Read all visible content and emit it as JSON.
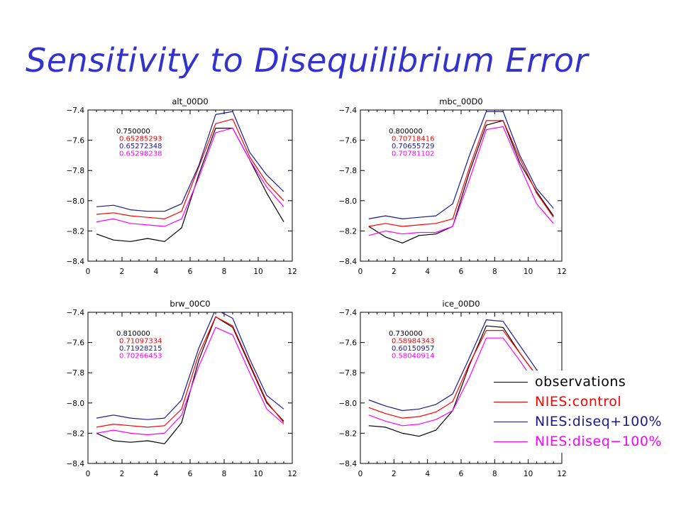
{
  "slide": {
    "title": "Sensitivity to Disequilibrium Error"
  },
  "colors": {
    "title": "#3333cc",
    "observations": "#000000",
    "control": "#ff0000",
    "plus": "#1a1a8c",
    "minus": "#ff00ff"
  },
  "legend": [
    {
      "label": "observations",
      "color": "#000000"
    },
    {
      "label": "NIES:control",
      "color": "#ff0000"
    },
    {
      "label": "NIES:diseq+100%",
      "color": "#1a1a8c"
    },
    {
      "label": "NIES:diseq−100%",
      "color": "#ff00ff"
    }
  ],
  "chart_data": [
    {
      "type": "line",
      "title": "alt_00D0",
      "xlim": [
        0,
        12
      ],
      "ylim": [
        -8.4,
        -7.4
      ],
      "xticks": [
        0,
        2,
        4,
        6,
        8,
        10,
        12
      ],
      "yticks": [
        -7.4,
        -7.6,
        -7.8,
        -8.0,
        -8.2,
        -8.4
      ],
      "x": [
        0.5,
        1.5,
        2.5,
        3.5,
        4.5,
        5.5,
        6.5,
        7.5,
        8.5,
        9.5,
        10.5,
        11.5
      ],
      "annotations": [
        "0.750000",
        "0.65285293",
        "0.65272348",
        "0.65298238"
      ],
      "series": [
        {
          "name": "observations",
          "values": [
            -8.22,
            -8.26,
            -8.27,
            -8.25,
            -8.27,
            -8.18,
            -7.83,
            -7.52,
            -7.52,
            -7.73,
            -7.95,
            -8.14
          ]
        },
        {
          "name": "NIES:control",
          "values": [
            -8.09,
            -8.08,
            -8.1,
            -8.11,
            -8.12,
            -8.07,
            -7.78,
            -7.49,
            -7.46,
            -7.71,
            -7.88,
            -8.0
          ]
        },
        {
          "name": "NIES:diseq+100%",
          "values": [
            -8.04,
            -8.03,
            -8.06,
            -8.07,
            -8.07,
            -8.02,
            -7.77,
            -7.43,
            -7.41,
            -7.68,
            -7.83,
            -7.94
          ]
        },
        {
          "name": "NIES:diseq−100%",
          "values": [
            -8.14,
            -8.12,
            -8.15,
            -8.16,
            -8.17,
            -8.12,
            -7.85,
            -7.55,
            -7.52,
            -7.73,
            -7.91,
            -8.04
          ]
        }
      ]
    },
    {
      "type": "line",
      "title": "mbc_00D0",
      "xlim": [
        0,
        12
      ],
      "ylim": [
        -8.4,
        -7.4
      ],
      "xticks": [
        0,
        2,
        4,
        6,
        8,
        10,
        12
      ],
      "yticks": [
        -7.4,
        -7.6,
        -7.8,
        -8.0,
        -8.2,
        -8.4
      ],
      "x": [
        0.5,
        1.5,
        2.5,
        3.5,
        4.5,
        5.5,
        6.5,
        7.5,
        8.5,
        9.5,
        10.5,
        11.5
      ],
      "annotations": [
        "0.800000",
        "0.70718416",
        "0.70655729",
        "0.70781102"
      ],
      "series": [
        {
          "name": "observations",
          "values": [
            -8.17,
            -8.24,
            -8.28,
            -8.23,
            -8.22,
            -8.17,
            -7.81,
            -7.5,
            -7.47,
            -7.75,
            -7.94,
            -8.1
          ]
        },
        {
          "name": "NIES:control",
          "values": [
            -8.17,
            -8.15,
            -8.17,
            -8.16,
            -8.15,
            -8.12,
            -7.78,
            -7.47,
            -7.47,
            -7.72,
            -7.95,
            -8.11
          ]
        },
        {
          "name": "NIES:diseq+100%",
          "values": [
            -8.12,
            -8.1,
            -8.12,
            -8.11,
            -8.1,
            -8.02,
            -7.7,
            -7.41,
            -7.41,
            -7.7,
            -7.92,
            -8.05
          ]
        },
        {
          "name": "NIES:diseq−100%",
          "values": [
            -8.23,
            -8.2,
            -8.22,
            -8.21,
            -8.21,
            -8.17,
            -7.86,
            -7.53,
            -7.51,
            -7.77,
            -8.02,
            -8.15
          ]
        }
      ]
    },
    {
      "type": "line",
      "title": "brw_00C0",
      "xlim": [
        0,
        12
      ],
      "ylim": [
        -8.4,
        -7.4
      ],
      "xticks": [
        0,
        2,
        4,
        6,
        8,
        10,
        12
      ],
      "yticks": [
        -7.4,
        -7.6,
        -7.8,
        -8.0,
        -8.2,
        -8.4
      ],
      "x": [
        0.5,
        1.5,
        2.5,
        3.5,
        4.5,
        5.5,
        6.5,
        7.5,
        8.5,
        9.5,
        10.5,
        11.5
      ],
      "annotations": [
        "0.810000",
        "0.71097334",
        "0.71928215",
        "0.70266453"
      ],
      "series": [
        {
          "name": "observations",
          "values": [
            -8.2,
            -8.25,
            -8.26,
            -8.25,
            -8.27,
            -8.13,
            -7.72,
            -7.43,
            -7.5,
            -7.75,
            -8.0,
            -8.12
          ]
        },
        {
          "name": "NIES:control",
          "values": [
            -8.16,
            -8.14,
            -8.15,
            -8.16,
            -8.15,
            -8.04,
            -7.68,
            -7.43,
            -7.49,
            -7.74,
            -7.99,
            -8.13
          ]
        },
        {
          "name": "NIES:diseq+100%",
          "values": [
            -8.1,
            -8.08,
            -8.1,
            -8.11,
            -8.1,
            -7.98,
            -7.64,
            -7.38,
            -7.44,
            -7.71,
            -7.95,
            -8.04
          ]
        },
        {
          "name": "NIES:diseq−100%",
          "values": [
            -8.2,
            -8.18,
            -8.2,
            -8.21,
            -8.2,
            -8.08,
            -7.76,
            -7.5,
            -7.55,
            -7.8,
            -8.04,
            -8.14
          ]
        }
      ]
    },
    {
      "type": "line",
      "title": "ice_00D0",
      "xlim": [
        0,
        12
      ],
      "ylim": [
        -8.4,
        -7.4
      ],
      "xticks": [
        0,
        2,
        4,
        6,
        8,
        10,
        12
      ],
      "yticks": [
        -7.4,
        -7.6,
        -7.8,
        -8.0,
        -8.2,
        -8.4
      ],
      "x": [
        0.5,
        1.5,
        2.5,
        3.5,
        4.5,
        5.5,
        6.5,
        7.5,
        8.5,
        9.5,
        10.5,
        11.5
      ],
      "annotations": [
        "0.730000",
        "0.58984343",
        "0.60150957",
        "0.58040914"
      ],
      "series": [
        {
          "name": "observations",
          "values": [
            -8.15,
            -8.16,
            -8.2,
            -8.22,
            -8.18,
            -8.05,
            -7.75,
            -7.49,
            -7.5,
            -7.67,
            -7.82,
            -7.96
          ]
        },
        {
          "name": "NIES:control",
          "values": [
            -8.03,
            -8.07,
            -8.1,
            -8.09,
            -8.06,
            -7.99,
            -7.74,
            -7.52,
            -7.52,
            -7.67,
            -7.82,
            -7.97
          ]
        },
        {
          "name": "NIES:diseq+100%",
          "values": [
            -7.98,
            -8.02,
            -8.05,
            -8.04,
            -8.01,
            -7.94,
            -7.7,
            -7.45,
            -7.46,
            -7.62,
            -7.78,
            -7.93
          ]
        },
        {
          "name": "NIES:diseq−100%",
          "values": [
            -8.08,
            -8.12,
            -8.15,
            -8.14,
            -8.11,
            -8.05,
            -7.83,
            -7.57,
            -7.57,
            -7.72,
            -7.88,
            -8.01
          ]
        }
      ]
    }
  ]
}
